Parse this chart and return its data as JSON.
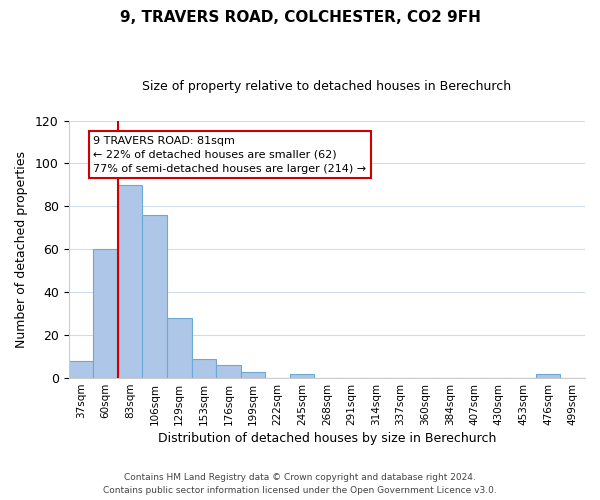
{
  "title": "9, TRAVERS ROAD, COLCHESTER, CO2 9FH",
  "subtitle": "Size of property relative to detached houses in Berechurch",
  "xlabel": "Distribution of detached houses by size in Berechurch",
  "ylabel": "Number of detached properties",
  "bin_labels": [
    "37sqm",
    "60sqm",
    "83sqm",
    "106sqm",
    "129sqm",
    "153sqm",
    "176sqm",
    "199sqm",
    "222sqm",
    "245sqm",
    "268sqm",
    "291sqm",
    "314sqm",
    "337sqm",
    "360sqm",
    "384sqm",
    "407sqm",
    "430sqm",
    "453sqm",
    "476sqm",
    "499sqm"
  ],
  "bar_heights": [
    8,
    60,
    90,
    76,
    28,
    9,
    6,
    3,
    0,
    2,
    0,
    0,
    0,
    0,
    0,
    0,
    0,
    0,
    0,
    2,
    0
  ],
  "bar_color": "#aec6e8",
  "bar_edge_color": "#6aaad4",
  "vline_color": "#cc0000",
  "vline_index": 1.5,
  "ylim": [
    0,
    120
  ],
  "yticks": [
    0,
    20,
    40,
    60,
    80,
    100,
    120
  ],
  "annotation_title": "9 TRAVERS ROAD: 81sqm",
  "annotation_line1": "← 22% of detached houses are smaller (62)",
  "annotation_line2": "77% of semi-detached houses are larger (214) →",
  "annotation_box_color": "#ffffff",
  "annotation_box_edgecolor": "#cc0000",
  "footer_line1": "Contains HM Land Registry data © Crown copyright and database right 2024.",
  "footer_line2": "Contains public sector information licensed under the Open Government Licence v3.0.",
  "background_color": "#ffffff",
  "grid_color": "#d0dce8"
}
